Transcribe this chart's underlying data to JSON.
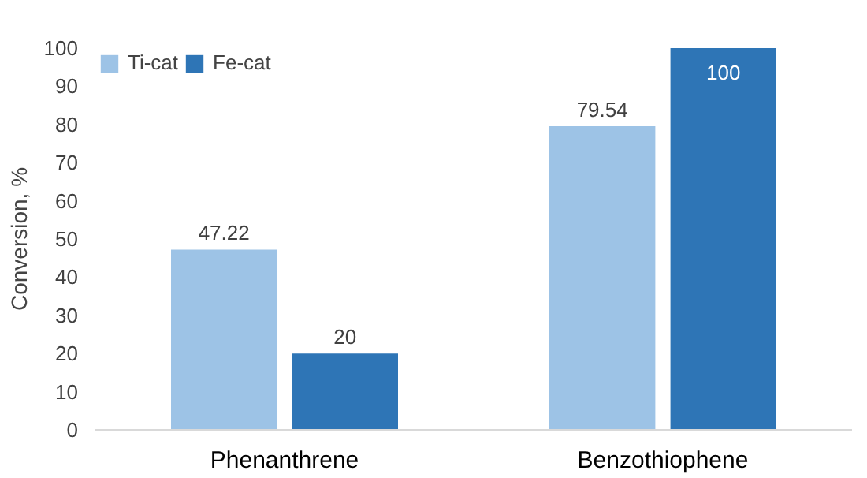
{
  "chart_data": {
    "type": "bar",
    "ylabel": "Conversion, %",
    "categories": [
      "Phenanthrene",
      "Benzothiophene"
    ],
    "series": [
      {
        "name": "Ti-cat",
        "color": "#9dc3e6",
        "values": [
          47.22,
          79.54
        ]
      },
      {
        "name": "Fe-cat",
        "color": "#2e75b6",
        "values": [
          20,
          100
        ]
      }
    ],
    "ylim": [
      0,
      100
    ],
    "yticks": [
      0,
      10,
      20,
      30,
      40,
      50,
      60,
      70,
      80,
      90,
      100
    ],
    "data_labels": true,
    "grid": false,
    "legend": "top"
  }
}
